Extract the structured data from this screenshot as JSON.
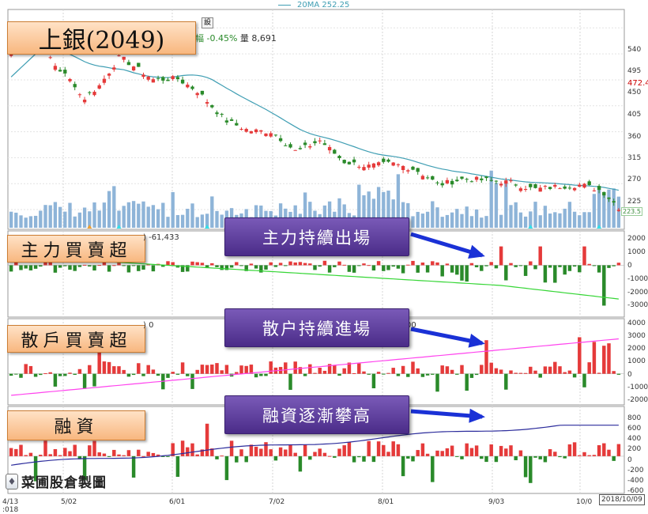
{
  "stock": {
    "title": "上銀(2049)",
    "change_label": "幅",
    "change_pct": "-0.45%",
    "volume_label": "量",
    "volume": "8,691",
    "setting_button": "設"
  },
  "legend": {
    "ma_label": "20MA 252.25"
  },
  "panels": {
    "main_force": {
      "label": "主力買賣超",
      "info": ") -61,433",
      "annotation": "主力持續出場"
    },
    "retail": {
      "label": "散戶買賣超",
      "info": ") 0",
      "annotation": "散户持續進場",
      "info2": "00"
    },
    "margin": {
      "label": "融資",
      "annotation": "融資逐漸攀高"
    }
  },
  "watermark": {
    "text": "菜圃股倉製圖"
  },
  "price_axis": {
    "ticks": [
      "540",
      "495",
      "450",
      "405",
      "360",
      "315",
      "270",
      "225"
    ],
    "current": "472.4",
    "marker": "223.5"
  },
  "date_axis": {
    "labels": [
      "5/02",
      "6/01",
      "7/02",
      "8/01",
      "9/03",
      "10/0"
    ],
    "left_label_top": "4/13",
    "left_label_bottom": ":018",
    "cursor_date": "2018/10/09"
  },
  "main_axis": {
    "ticks": [
      "2000",
      "1000",
      "0",
      "-1000",
      "-2000",
      "-3000"
    ]
  },
  "retail_axis": {
    "ticks": [
      "4000",
      "3000",
      "2000",
      "1000",
      "0",
      "-1000",
      "-2000"
    ]
  },
  "margin_axis": {
    "ticks": [
      "800",
      "600",
      "400",
      "200",
      "0",
      "-200",
      "-400",
      "-600"
    ]
  },
  "colors": {
    "up": "#e53a3a",
    "down": "#2a8a2a",
    "ma": "#3f9eb3",
    "volume": "#8eb4d8",
    "cum_main": "#36d636",
    "cum_retail": "#ff44ee",
    "cum_margin": "#2c2c9c",
    "arrow": "#1a31d6"
  },
  "chart_data": {
    "type": "candlestick",
    "title": "上銀(2049)",
    "x_range": [
      "2018-04-13",
      "2018-10-09"
    ],
    "price_ylim": [
      210,
      550
    ],
    "price_ohlc_samples": [
      {
        "date": "2018-04-13",
        "close": 495
      },
      {
        "date": "2018-04-18",
        "close": 520
      },
      {
        "date": "2018-04-20",
        "close": 530
      },
      {
        "date": "2018-04-26",
        "close": 475
      },
      {
        "date": "2018-05-02",
        "close": 440
      },
      {
        "date": "2018-05-04",
        "close": 415
      },
      {
        "date": "2018-05-09",
        "close": 440
      },
      {
        "date": "2018-05-15",
        "close": 490
      },
      {
        "date": "2018-05-25",
        "close": 450
      },
      {
        "date": "2018-06-01",
        "close": 452
      },
      {
        "date": "2018-06-07",
        "close": 430
      },
      {
        "date": "2018-06-15",
        "close": 380
      },
      {
        "date": "2018-06-22",
        "close": 362
      },
      {
        "date": "2018-06-29",
        "close": 360
      },
      {
        "date": "2018-07-06",
        "close": 325
      },
      {
        "date": "2018-07-13",
        "close": 345
      },
      {
        "date": "2018-07-20",
        "close": 308
      },
      {
        "date": "2018-07-27",
        "close": 300
      },
      {
        "date": "2018-08-03",
        "close": 305
      },
      {
        "date": "2018-08-10",
        "close": 295
      },
      {
        "date": "2018-08-17",
        "close": 268
      },
      {
        "date": "2018-08-24",
        "close": 278
      },
      {
        "date": "2018-08-31",
        "close": 276
      },
      {
        "date": "2018-09-07",
        "close": 272
      },
      {
        "date": "2018-09-14",
        "close": 260
      },
      {
        "date": "2018-09-21",
        "close": 265
      },
      {
        "date": "2018-09-28",
        "close": 268
      },
      {
        "date": "2018-10-04",
        "close": 258
      },
      {
        "date": "2018-10-09",
        "close": 229
      }
    ],
    "ma20": {
      "name": "20MA",
      "last": 252.25
    },
    "main_force_ylim": [
      -3500,
      2200
    ],
    "retail_ylim": [
      -2200,
      4200
    ],
    "margin_ylim": [
      -650,
      900
    ]
  }
}
